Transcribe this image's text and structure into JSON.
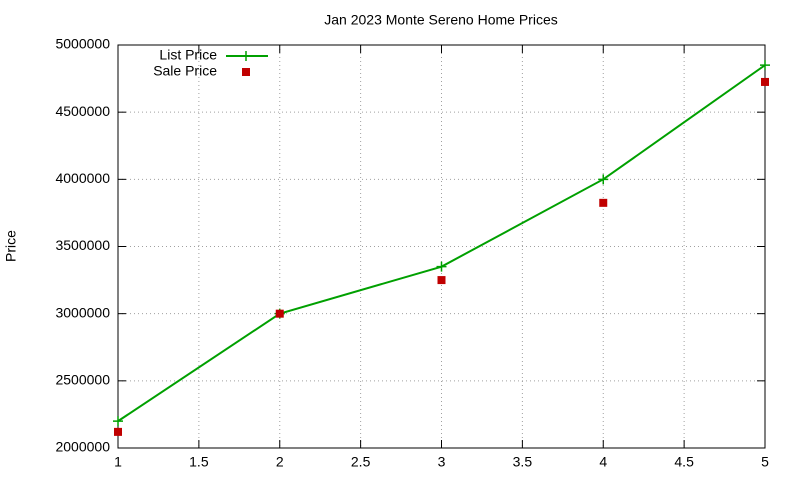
{
  "chart_data": {
    "type": "line",
    "title": "Jan 2023 Monte Sereno Home Prices",
    "y_label": "Price",
    "x": [
      1,
      2,
      3,
      4,
      5
    ],
    "series": [
      {
        "name": "List Price",
        "color": "#00a000",
        "mode": "lines+markers",
        "marker": "cross",
        "values": [
          2200000,
          3000000,
          3350000,
          4000000,
          4850000
        ]
      },
      {
        "name": "Sale Price",
        "color": "#c00000",
        "mode": "markers",
        "marker": "square",
        "values": [
          2120000,
          3000000,
          3250000,
          3825000,
          4725000
        ]
      }
    ],
    "xlim": [
      1,
      5
    ],
    "xticks": [
      1,
      1.5,
      2,
      2.5,
      3,
      3.5,
      4,
      4.5,
      5
    ],
    "ylim": [
      2000000,
      5000000
    ],
    "yticks": [
      2000000,
      2500000,
      3000000,
      3500000,
      4000000,
      4500000,
      5000000
    ],
    "grid": true,
    "legend": "top-left"
  }
}
